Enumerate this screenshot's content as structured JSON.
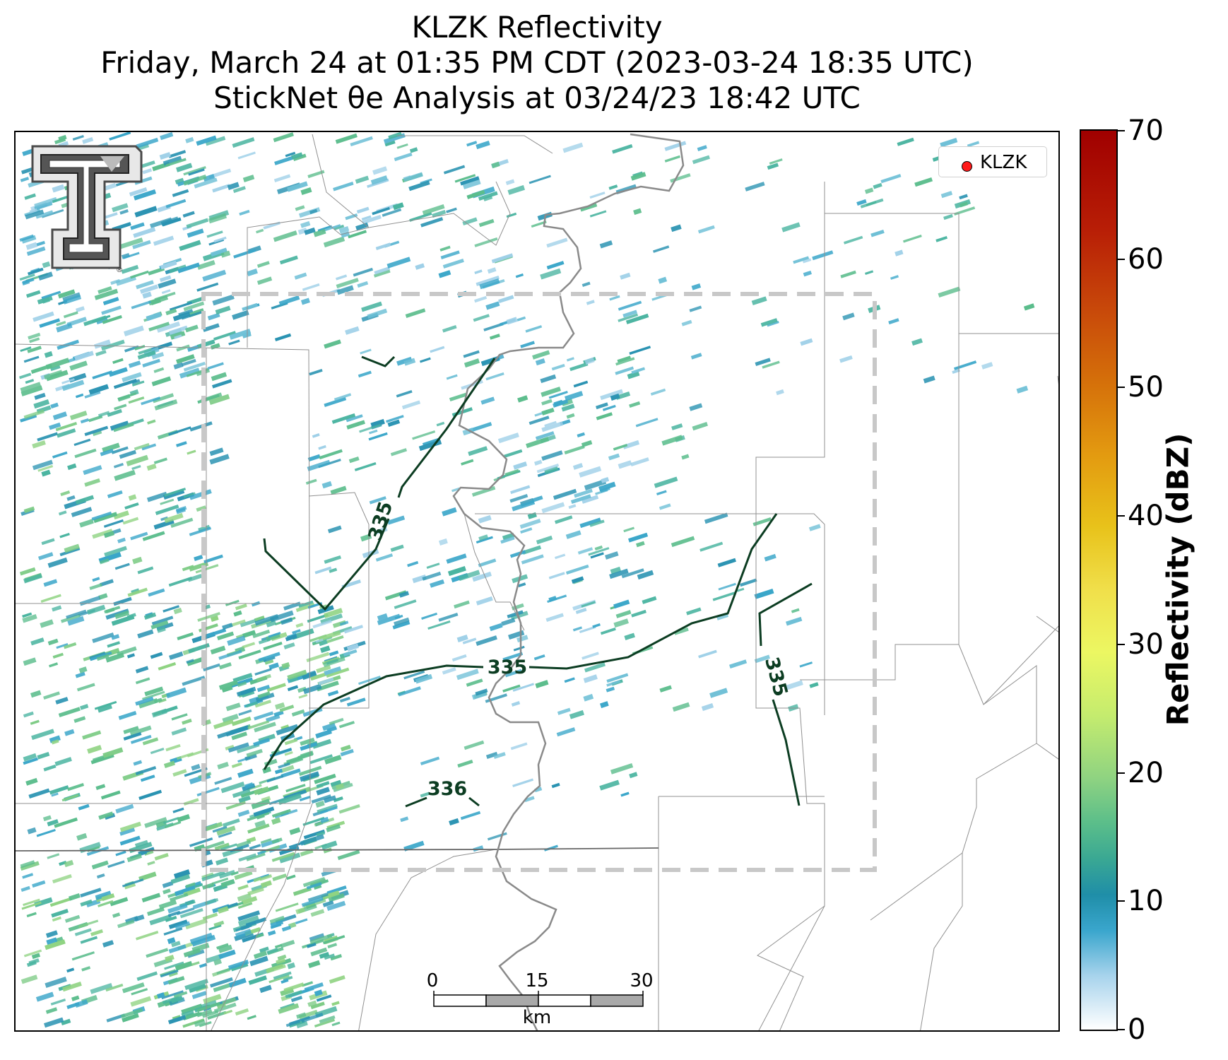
{
  "title": {
    "line1": "KLZK Reflectivity",
    "line2": "Friday, March 24 at 01:35 PM CDT (2023-03-24 18:35 UTC)",
    "line3": "StickNet θe Analysis at 03/24/23 18:42 UTC"
  },
  "legend": {
    "label": "KLZK",
    "marker_color": "#ff1a1a"
  },
  "colorbar": {
    "label": "Reflectivity (dBZ)",
    "ticks": [
      "0",
      "10",
      "20",
      "30",
      "40",
      "50",
      "60",
      "70"
    ]
  },
  "scale_bar": {
    "ticks": [
      "0",
      "15",
      "30"
    ],
    "unit": "km"
  },
  "contours": {
    "labels": [
      "335",
      "335",
      "335",
      "336"
    ],
    "color": "#0c3d22"
  },
  "logo": {
    "name": "texas-tech-double-t-logo",
    "mark": "®"
  },
  "colors": {
    "analysis_box": "#c8c8c8",
    "river": "#8a8a8a",
    "county_lines": "#909090"
  }
}
